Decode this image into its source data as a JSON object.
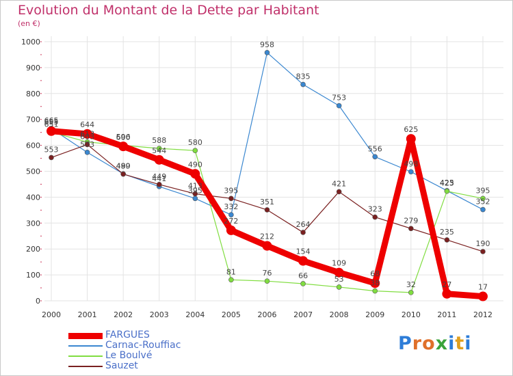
{
  "title": "Evolution du Montant de la Dette par Habitant",
  "subtitle": "(en €)",
  "logo_text": "Proxiti",
  "colors": {
    "title": "#c0306a",
    "grid": "#e3e3e3",
    "axis_text": "#333333",
    "legend_text": "#4a6fc8"
  },
  "chart_data": {
    "type": "line",
    "x": [
      "2000",
      "2001",
      "2002",
      "2003",
      "2004",
      "2005",
      "2006",
      "2007",
      "2008",
      "2009",
      "2010",
      "2011",
      "2012"
    ],
    "ylim": [
      0,
      1000
    ],
    "yticks": [
      "0",
      "100",
      "200",
      "300",
      "400",
      "500",
      "600",
      "700",
      "800",
      "900",
      "1000"
    ],
    "grid": true,
    "legend_position": "bottom-left",
    "series": [
      {
        "name": "FARGUES",
        "color": "#ee0000",
        "values": [
          655,
          644,
          596,
          544,
          490,
          272,
          212,
          154,
          109,
          68,
          625,
          27,
          17
        ],
        "labels": [
          "655",
          "644",
          "596",
          "544",
          "490",
          "272",
          "212",
          "154",
          "109",
          "68",
          "625",
          "27",
          "17"
        ]
      },
      {
        "name": "Carnac-Rouffiac",
        "color": "#3a87d0",
        "values": [
          665,
          573,
          490,
          441,
          395,
          332,
          958,
          835,
          753,
          556,
          498,
          425,
          352
        ],
        "labels": [
          "665",
          "573",
          "490",
          "441",
          "395",
          "332",
          "958",
          "835",
          "753",
          "556",
          "498",
          "425",
          "352"
        ]
      },
      {
        "name": "Le Boulvé",
        "color": "#80dd40",
        "values": [
          651,
          613,
          600,
          588,
          580,
          81,
          76,
          66,
          53,
          38,
          32,
          423,
          395
        ],
        "labels": [
          "651",
          "613",
          "600",
          "588",
          "580",
          "81",
          "76",
          "66",
          "53",
          "38",
          "32",
          "423",
          "395"
        ]
      },
      {
        "name": "Sauzet",
        "color": "#7a2020",
        "values": [
          553,
          603,
          489,
          449,
          413,
          395,
          351,
          264,
          421,
          323,
          279,
          235,
          190
        ],
        "labels": [
          "553",
          "603",
          "489",
          "449",
          "413",
          "395",
          "351",
          "264",
          "421",
          "323",
          "279",
          "235",
          "190"
        ]
      }
    ]
  }
}
